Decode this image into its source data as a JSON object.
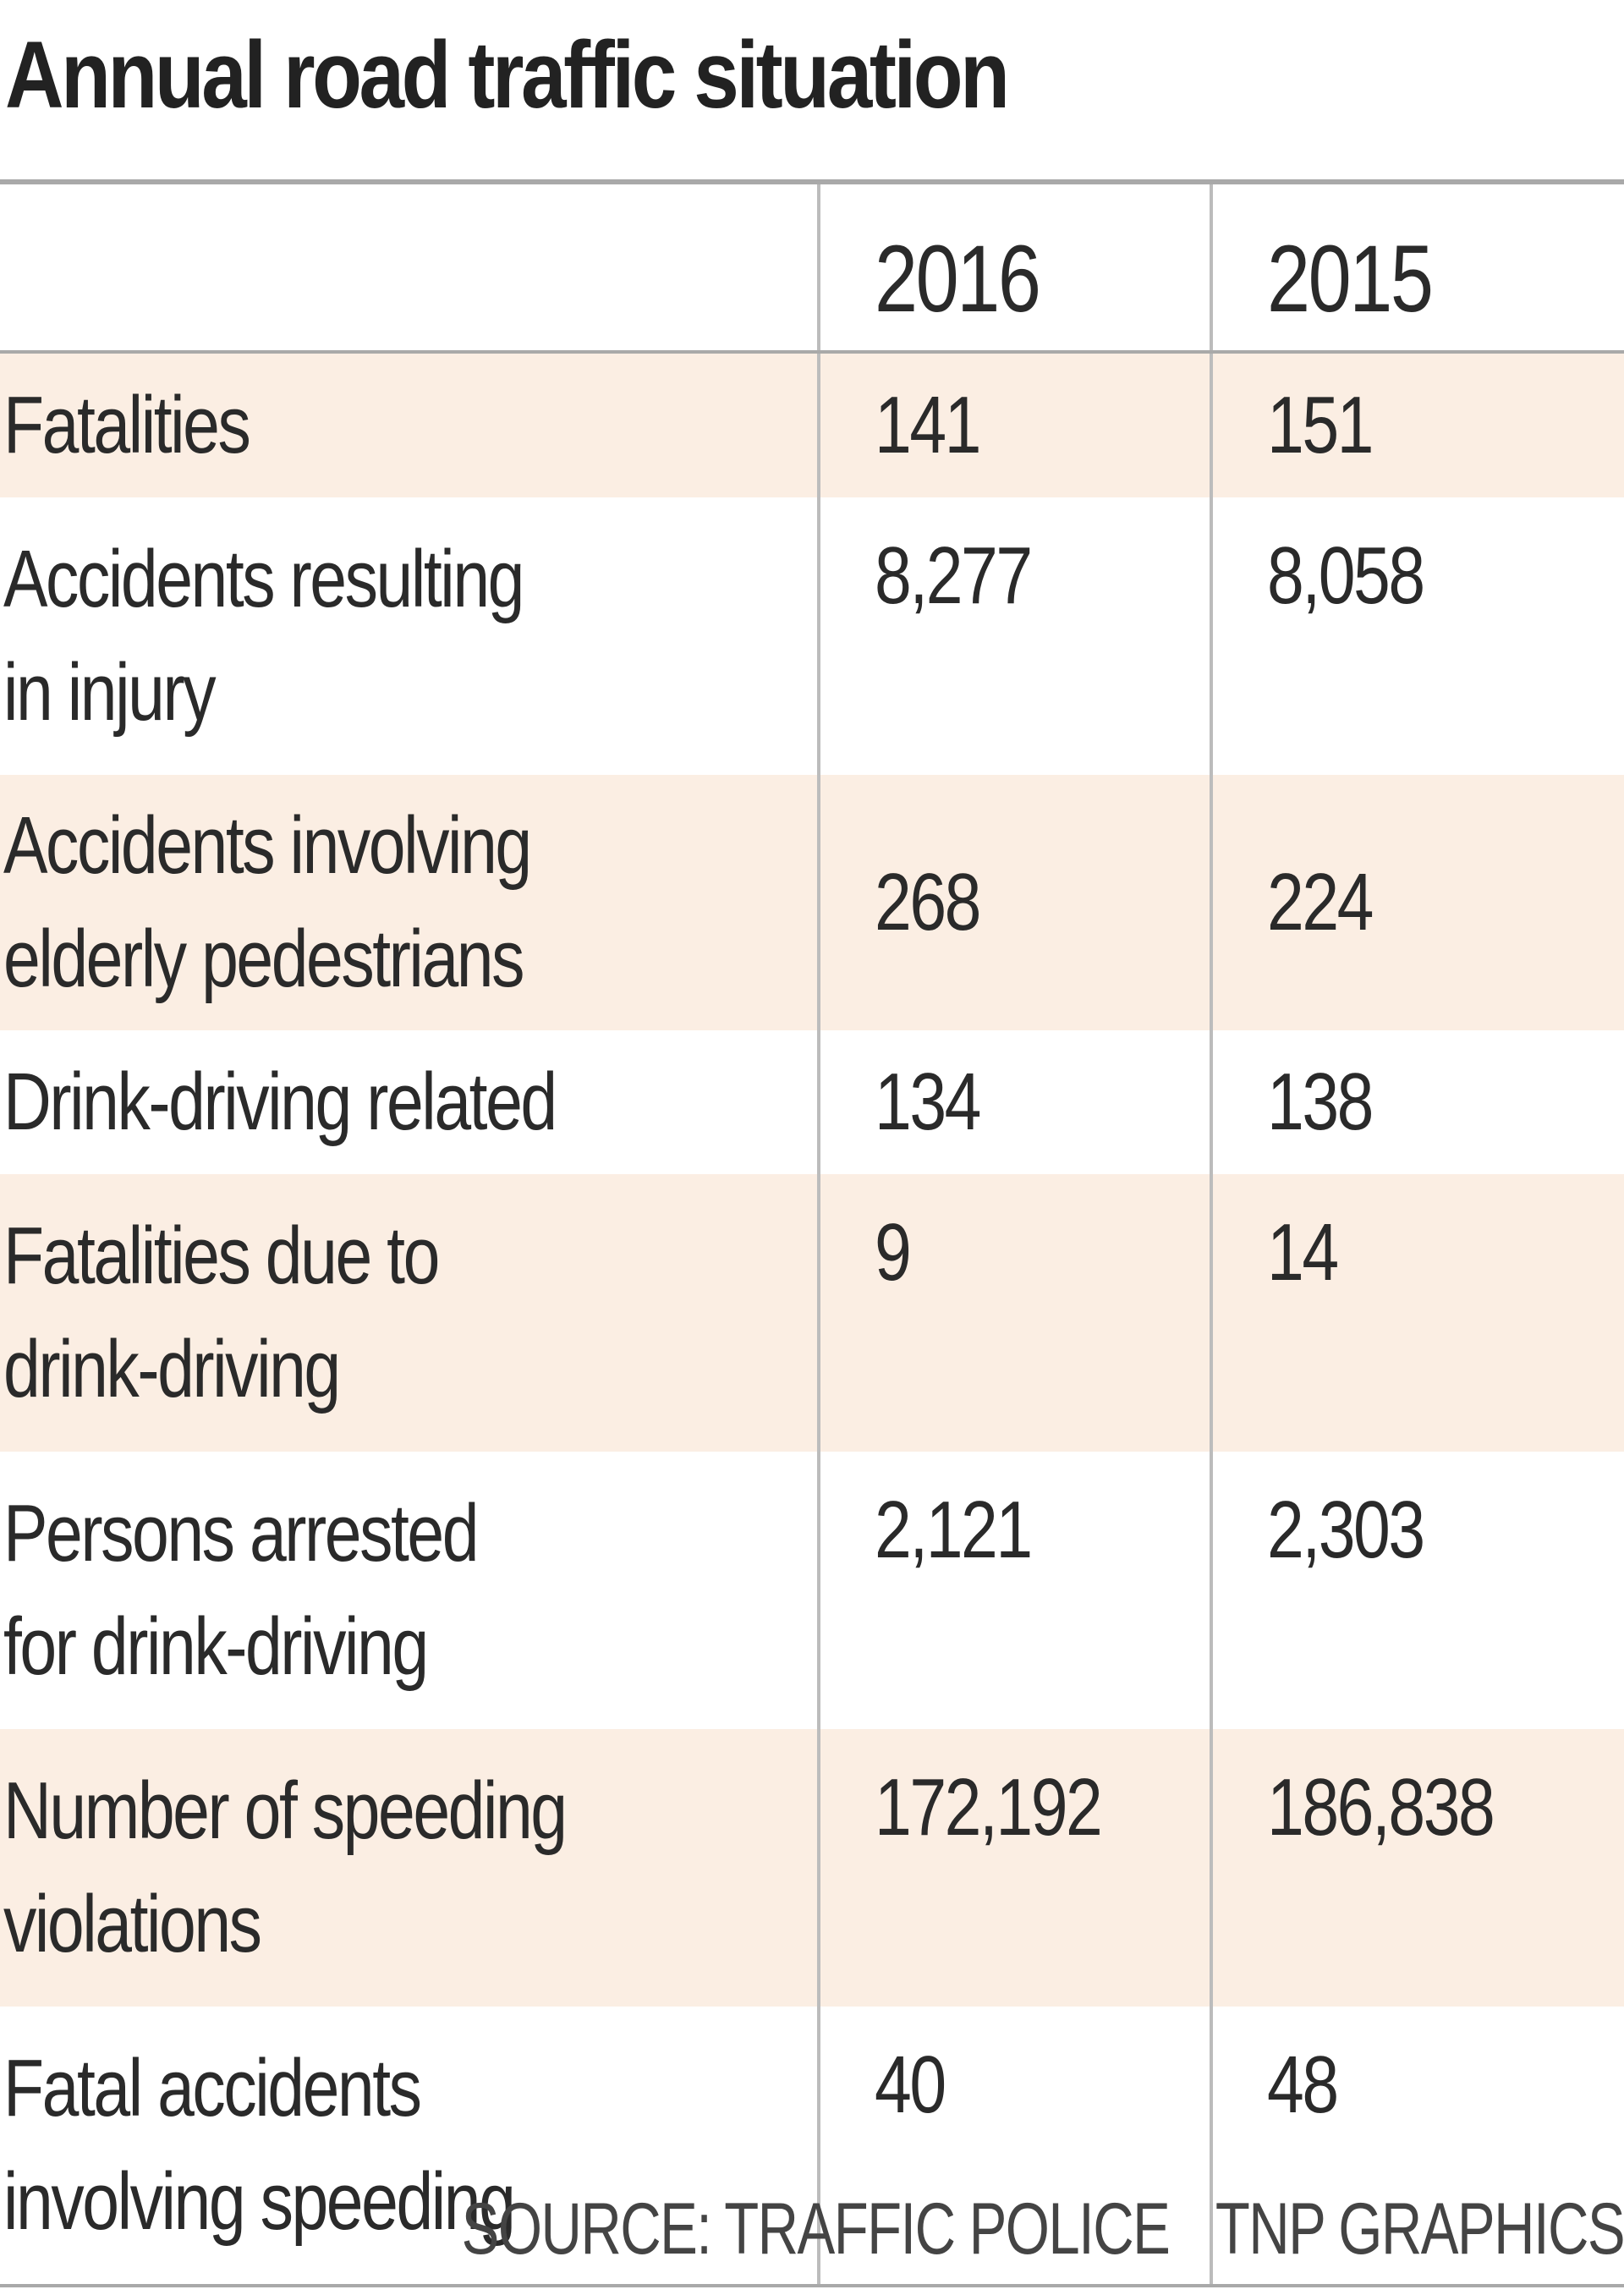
{
  "chart_data": {
    "type": "table",
    "title": "Annual road traffic situation",
    "columns": [
      "",
      "2016",
      "2015"
    ],
    "rows": [
      {
        "label_lines": [
          "Fatalities"
        ],
        "values": [
          "141",
          "151"
        ]
      },
      {
        "label_lines": [
          "Accidents resulting",
          "in injury"
        ],
        "values": [
          "8,277",
          "8,058"
        ]
      },
      {
        "label_lines": [
          "Accidents involving",
          "elderly pedestrians"
        ],
        "values": [
          "268",
          "224"
        ]
      },
      {
        "label_lines": [
          "Drink-driving related"
        ],
        "values": [
          "134",
          "138"
        ]
      },
      {
        "label_lines": [
          "Fatalities due to",
          "drink-driving"
        ],
        "values": [
          "9",
          "14"
        ]
      },
      {
        "label_lines": [
          "Persons arrested",
          "for drink-driving"
        ],
        "values": [
          "2,121",
          "2,303"
        ]
      },
      {
        "label_lines": [
          "Number of speeding",
          "violations"
        ],
        "values": [
          "172,192",
          "186,838"
        ]
      },
      {
        "label_lines": [
          "Fatal accidents",
          "involving speeding"
        ],
        "values": [
          "40",
          "48"
        ]
      }
    ],
    "source": "SOURCE: TRAFFIC POLICE",
    "credit": "TNP GRAPHICS",
    "colors": {
      "shaded_row": "#fbeee3",
      "rule": "#a9a9a9",
      "text": "#2a2a2a"
    }
  }
}
